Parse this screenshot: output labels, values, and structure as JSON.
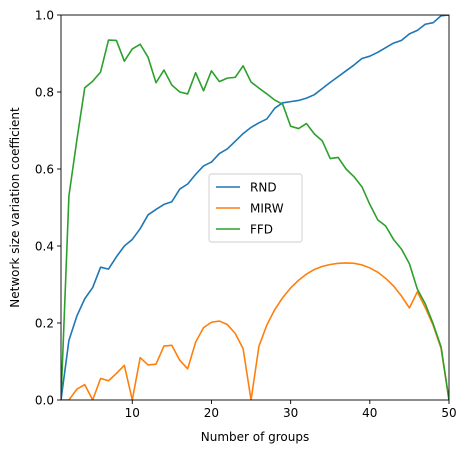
{
  "chart_data": {
    "type": "line",
    "title": "",
    "xlabel": "Number of groups",
    "ylabel": "Network size variation coefficient",
    "xlim": [
      1,
      50
    ],
    "ylim": [
      0,
      1
    ],
    "xticks": [
      10,
      20,
      30,
      40,
      50
    ],
    "yticks": [
      0.0,
      0.2,
      0.4,
      0.6,
      0.8,
      1.0
    ],
    "xtick_labels": [
      "10",
      "20",
      "30",
      "40",
      "50"
    ],
    "ytick_labels": [
      "0.0",
      "0.2",
      "0.4",
      "0.6",
      "0.8",
      "1.0"
    ],
    "grid": false,
    "legend_position": "center",
    "x": [
      1,
      2,
      3,
      4,
      5,
      6,
      7,
      8,
      9,
      10,
      11,
      12,
      13,
      14,
      15,
      16,
      17,
      18,
      19,
      20,
      21,
      22,
      23,
      24,
      25,
      26,
      27,
      28,
      29,
      30,
      31,
      32,
      33,
      34,
      35,
      36,
      37,
      38,
      39,
      40,
      41,
      42,
      43,
      44,
      45,
      46,
      47,
      48,
      49,
      50
    ],
    "series": [
      {
        "name": "RND",
        "color": "#1f77b4",
        "values": [
          0.0,
          0.155,
          0.218,
          0.263,
          0.292,
          0.345,
          0.34,
          0.372,
          0.4,
          0.417,
          0.445,
          0.481,
          0.495,
          0.508,
          0.515,
          0.548,
          0.561,
          0.586,
          0.608,
          0.618,
          0.64,
          0.652,
          0.672,
          0.692,
          0.708,
          0.72,
          0.73,
          0.758,
          0.772,
          0.775,
          0.778,
          0.784,
          0.793,
          0.809,
          0.825,
          0.84,
          0.855,
          0.87,
          0.887,
          0.893,
          0.903,
          0.915,
          0.927,
          0.934,
          0.951,
          0.96,
          0.976,
          0.98,
          0.998,
          1.0
        ]
      },
      {
        "name": "MIRW",
        "color": "#ff7f0e",
        "values": [
          0.0,
          0.0,
          0.028,
          0.04,
          0.0,
          0.056,
          0.05,
          0.069,
          0.09,
          0.0,
          0.11,
          0.091,
          0.093,
          0.14,
          0.142,
          0.103,
          0.081,
          0.15,
          0.188,
          0.202,
          0.205,
          0.196,
          0.173,
          0.133,
          0.0,
          0.14,
          0.195,
          0.235,
          0.266,
          0.291,
          0.311,
          0.327,
          0.339,
          0.347,
          0.352,
          0.355,
          0.356,
          0.355,
          0.351,
          0.343,
          0.332,
          0.316,
          0.296,
          0.27,
          0.239,
          0.281,
          0.24,
          0.194,
          0.134,
          0.0
        ]
      },
      {
        "name": "FFD",
        "color": "#2ca02c",
        "values": [
          0.0,
          0.53,
          0.675,
          0.811,
          0.828,
          0.852,
          0.935,
          0.934,
          0.88,
          0.912,
          0.924,
          0.89,
          0.824,
          0.857,
          0.818,
          0.8,
          0.795,
          0.85,
          0.803,
          0.855,
          0.827,
          0.836,
          0.838,
          0.868,
          0.826,
          0.81,
          0.795,
          0.779,
          0.768,
          0.711,
          0.705,
          0.718,
          0.691,
          0.673,
          0.627,
          0.63,
          0.6,
          0.58,
          0.554,
          0.508,
          0.468,
          0.452,
          0.417,
          0.392,
          0.354,
          0.288,
          0.25,
          0.198,
          0.138,
          0.0
        ]
      }
    ]
  }
}
